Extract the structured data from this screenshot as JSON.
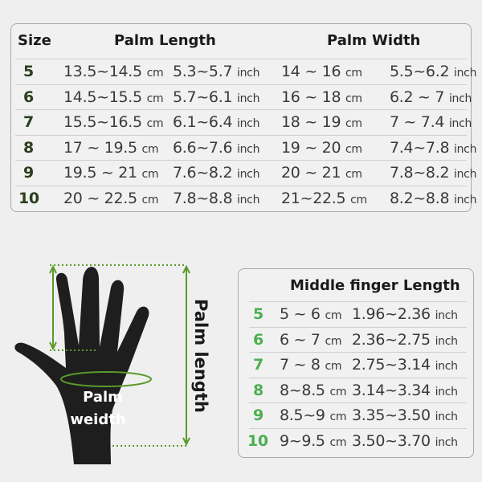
{
  "top_table": {
    "headers": {
      "size": "Size",
      "palm_length": "Palm Length",
      "palm_width": "Palm Width"
    },
    "rows": [
      {
        "size": "5",
        "pl_cm": "13.5~14.5",
        "pl_in": "5.3~5.7",
        "pw_cm": "14 ~ 16",
        "pw_in": "5.5~6.2"
      },
      {
        "size": "6",
        "pl_cm": "14.5~15.5",
        "pl_in": "5.7~6.1",
        "pw_cm": "16 ~ 18",
        "pw_in": "6.2 ~ 7"
      },
      {
        "size": "7",
        "pl_cm": "15.5~16.5",
        "pl_in": "6.1~6.4",
        "pw_cm": "18 ~ 19",
        "pw_in": "7 ~ 7.4"
      },
      {
        "size": "8",
        "pl_cm": "17 ~ 19.5",
        "pl_in": "6.6~7.6",
        "pw_cm": "19 ~ 20",
        "pw_in": "7.4~7.8"
      },
      {
        "size": "9",
        "pl_cm": "19.5 ~ 21",
        "pl_in": "7.6~8.2",
        "pw_cm": "20 ~ 21",
        "pw_in": "7.8~8.2"
      },
      {
        "size": "10",
        "pl_cm": "20 ~ 22.5",
        "pl_in": "7.8~8.8",
        "pw_cm": "21~22.5",
        "pw_in": "8.2~8.8"
      }
    ]
  },
  "units": {
    "cm": "cm",
    "inch": "inch"
  },
  "bottom_table": {
    "title": "Middle finger Length",
    "rows": [
      {
        "size": "5",
        "cm": "5 ~  6",
        "in": "1.96~2.36"
      },
      {
        "size": "6",
        "cm": "6 ~ 7",
        "in": "2.36~2.75"
      },
      {
        "size": "7",
        "cm": "7 ~ 8",
        "in": "2.75~3.14"
      },
      {
        "size": "8",
        "cm": "8~8.5",
        "in": "3.14~3.34"
      },
      {
        "size": "9",
        "cm": "8.5~9",
        "in": "3.35~3.50"
      },
      {
        "size": "10",
        "cm": "9~9.5",
        "in": "3.50~3.70"
      }
    ]
  },
  "diagram": {
    "palm_width_label_1": "Palm",
    "palm_width_label_2": "weidth",
    "palm_length_label": "Palm length"
  },
  "colors": {
    "size_dark_green": "#2b3f1d",
    "size_green": "#4caf50",
    "guide_green": "#5a9a2a",
    "hand": "#1e1e1e"
  }
}
